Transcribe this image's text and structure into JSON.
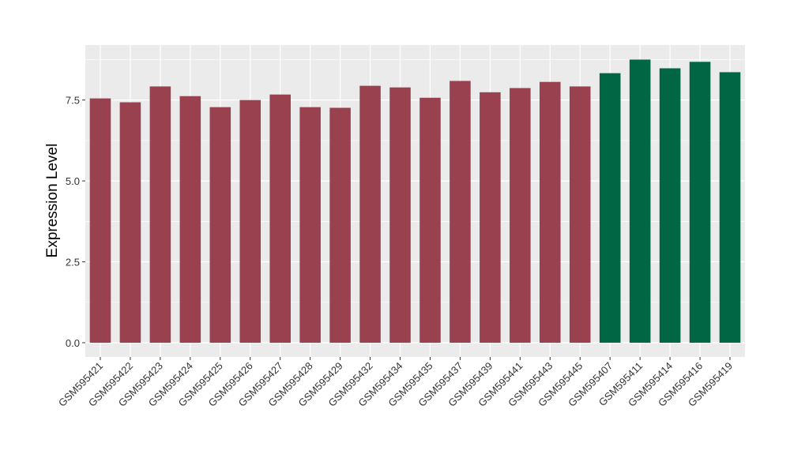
{
  "chart_data": {
    "type": "bar",
    "title": "",
    "xlabel": "",
    "ylabel": "Expression Level",
    "ylim": [
      -0.44,
      9.2
    ],
    "yticks": [
      "0.0",
      "2.5",
      "5.0",
      "7.5"
    ],
    "grid": true,
    "colors": {
      "group1": "#9A4150",
      "group2": "#006644",
      "panel": "#EBEBEB"
    },
    "categories": [
      "GSM595421",
      "GSM595422",
      "GSM595423",
      "GSM595424",
      "GSM595425",
      "GSM595426",
      "GSM595427",
      "GSM595428",
      "GSM595429",
      "GSM595432",
      "GSM595434",
      "GSM595435",
      "GSM595437",
      "GSM595439",
      "GSM595441",
      "GSM595443",
      "GSM595445",
      "GSM595407",
      "GSM595411",
      "GSM595414",
      "GSM595416",
      "GSM595419"
    ],
    "values": [
      7.55,
      7.43,
      7.92,
      7.62,
      7.28,
      7.5,
      7.67,
      7.28,
      7.26,
      7.94,
      7.89,
      7.57,
      8.09,
      7.74,
      7.87,
      8.06,
      7.92,
      8.33,
      8.75,
      8.48,
      8.68,
      8.36
    ],
    "groups": [
      1,
      1,
      1,
      1,
      1,
      1,
      1,
      1,
      1,
      1,
      1,
      1,
      1,
      1,
      1,
      1,
      1,
      2,
      2,
      2,
      2,
      2
    ]
  }
}
